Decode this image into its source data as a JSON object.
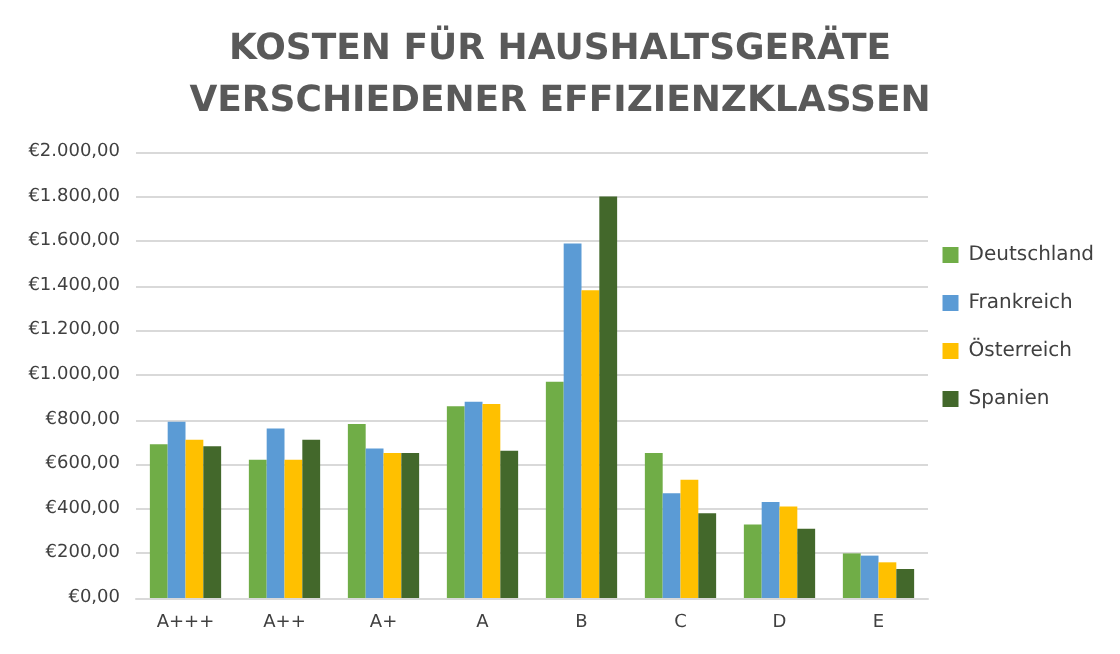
{
  "chart_data": {
    "type": "bar",
    "title": "KOSTEN FÜR HAUSHALTSGERÄTE\nVERSCHIEDENER EFFIZIENZKLASSEN",
    "categories": [
      "A+++",
      "A++",
      "A+",
      "A",
      "B",
      "C",
      "D",
      "E"
    ],
    "series": [
      {
        "name": "Deutschland",
        "color": "#70ad47",
        "values": [
          690,
          620,
          780,
          860,
          970,
          650,
          330,
          200
        ]
      },
      {
        "name": "Frankreich",
        "color": "#5b9bd5",
        "values": [
          790,
          760,
          670,
          880,
          1590,
          470,
          430,
          190
        ]
      },
      {
        "name": "Österreich",
        "color": "#ffc000",
        "values": [
          710,
          620,
          650,
          870,
          1380,
          530,
          410,
          160
        ]
      },
      {
        "name": "Spanien",
        "color": "#43682b",
        "values": [
          680,
          710,
          650,
          660,
          1800,
          380,
          310,
          130
        ]
      }
    ],
    "ylim": [
      0,
      2000
    ],
    "yticks": [
      {
        "value": 0,
        "label": "€0,00"
      },
      {
        "value": 200,
        "label": "€200,00"
      },
      {
        "value": 400,
        "label": "€400,00"
      },
      {
        "value": 600,
        "label": "€600,00"
      },
      {
        "value": 800,
        "label": "€800,00"
      },
      {
        "value": 1000,
        "label": "€1.000,00"
      },
      {
        "value": 1200,
        "label": "€1.200,00"
      },
      {
        "value": 1400,
        "label": "€1.400,00"
      },
      {
        "value": 1600,
        "label": "€1.600,00"
      },
      {
        "value": 1800,
        "label": "€1.800,00"
      },
      {
        "value": 2000,
        "label": "€2.000,00"
      }
    ],
    "grid": "y",
    "legend": "right"
  }
}
